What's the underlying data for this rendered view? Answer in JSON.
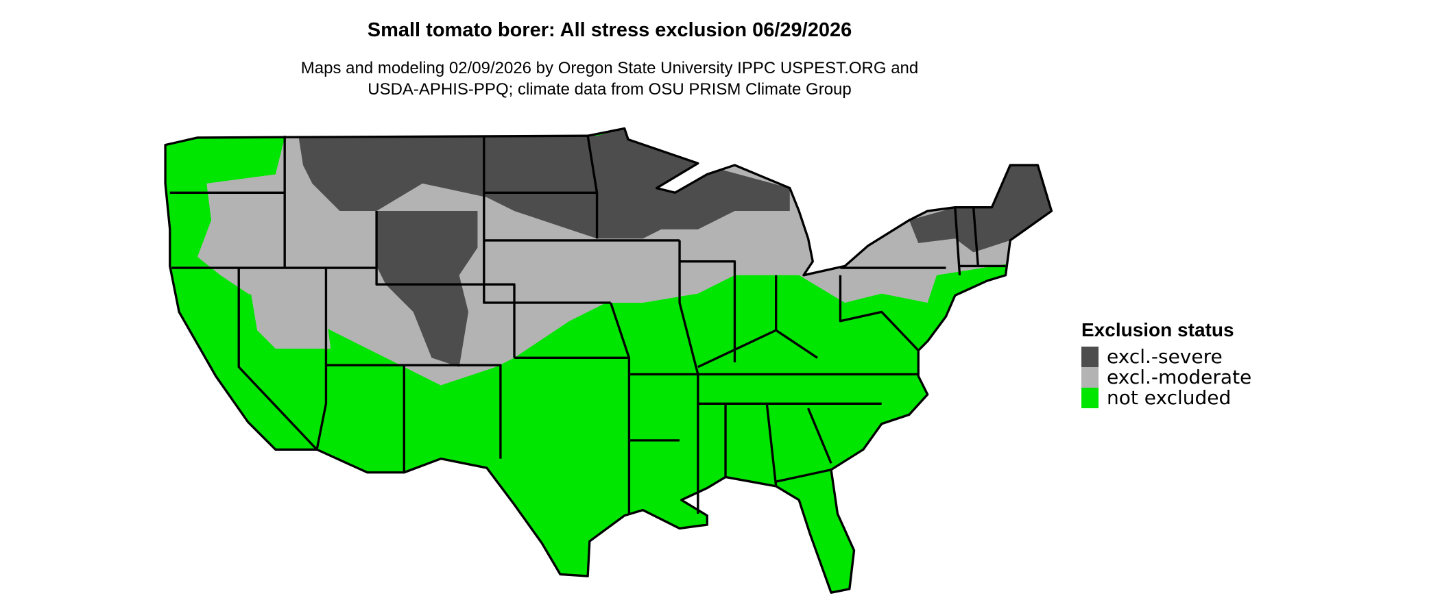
{
  "title": "Small tomato borer: All stress exclusion 06/29/2026",
  "subtitle_lines": [
    "Maps and modeling 02/09/2026 by Oregon State University IPPC USPEST.ORG and",
    "USDA-APHIS-PPQ; climate data from OSU PRISM Climate Group"
  ],
  "legend": {
    "title": "Exclusion status",
    "items": [
      {
        "label": "excl.-severe",
        "color": "#4d4d4d"
      },
      {
        "label": "excl.-moderate",
        "color": "#b3b3b3"
      },
      {
        "label": "not excluded",
        "color": "#00e600"
      }
    ]
  },
  "map": {
    "region": "contiguous United States",
    "boundary_color": "#000000"
  }
}
